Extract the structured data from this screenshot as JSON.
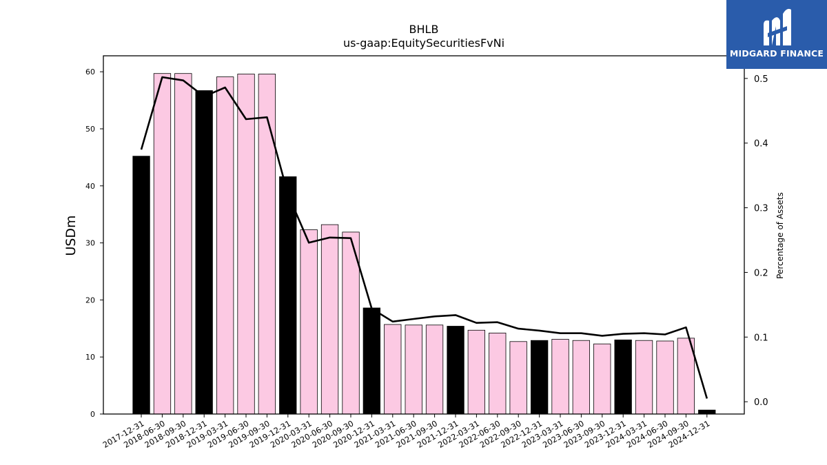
{
  "chart_data": {
    "type": "bar",
    "title": "BHLB",
    "subtitle": "us-gaap:EquitySecuritiesFvNi",
    "ylabel": "USDm",
    "y2label": "Percentage of Assets",
    "categories": [
      "2017-12-31",
      "2018-06-30",
      "2018-09-30",
      "2018-12-31",
      "2019-03-31",
      "2019-06-30",
      "2019-09-30",
      "2019-12-31",
      "2020-03-31",
      "2020-06-30",
      "2020-09-30",
      "2020-12-31",
      "2021-03-31",
      "2021-06-30",
      "2021-09-30",
      "2021-12-31",
      "2022-03-31",
      "2022-06-30",
      "2022-09-30",
      "2022-12-31",
      "2023-03-31",
      "2023-06-30",
      "2023-09-30",
      "2023-12-31",
      "2024-03-31",
      "2024-06-30",
      "2024-09-30",
      "2024-12-31"
    ],
    "series": [
      {
        "type": "bar",
        "values": [
          45.2,
          59.7,
          59.7,
          56.7,
          59.1,
          59.6,
          59.6,
          41.6,
          32.3,
          33.2,
          31.9,
          18.6,
          15.7,
          15.6,
          15.6,
          15.4,
          14.7,
          14.2,
          12.7,
          12.9,
          13.1,
          12.9,
          12.3,
          13.0,
          12.9,
          12.8,
          13.3,
          0.7
        ]
      },
      {
        "type": "line",
        "axis": "right",
        "values": [
          0.39,
          0.502,
          0.497,
          0.472,
          0.486,
          0.437,
          0.44,
          0.321,
          0.246,
          0.254,
          0.253,
          0.144,
          0.124,
          0.128,
          0.132,
          0.134,
          0.122,
          0.123,
          0.113,
          0.11,
          0.106,
          0.106,
          0.102,
          0.105,
          0.106,
          0.104,
          0.115,
          0.005
        ]
      }
    ],
    "bar_colors": {
      "year_end": "#000000",
      "quarter": "#fcc9e3"
    },
    "line_color": "#000000",
    "ylim": [
      0,
      62.8
    ],
    "yticks": [
      0,
      10,
      20,
      30,
      40,
      50,
      60
    ],
    "y2lim": [
      -0.019,
      0.535
    ],
    "y2ticks": [
      0.0,
      0.1,
      0.2,
      0.3,
      0.4,
      0.5
    ],
    "y2tick_labels": [
      "0.0",
      "0.1",
      "0.2",
      "0.3",
      "0.4",
      "0.5"
    ],
    "grid": false
  },
  "logo": {
    "text": "MIDGARD FINANCE",
    "color": "#2a5cab"
  }
}
